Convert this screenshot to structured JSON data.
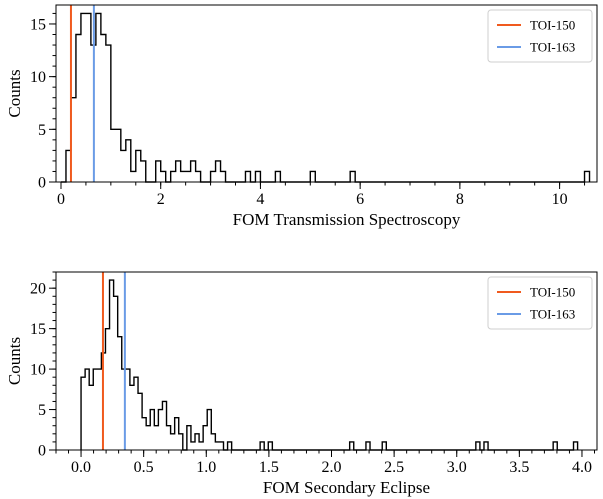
{
  "chart_data": [
    {
      "type": "histogram",
      "xlabel": "FOM Transmission Spectroscopy",
      "ylabel": "Counts",
      "xlim": [
        -0.1,
        10.75
      ],
      "ylim": [
        0,
        16.8
      ],
      "xticks": [
        0,
        2,
        4,
        6,
        8,
        10
      ],
      "yticks": [
        0,
        5,
        10,
        15
      ],
      "bin_start": 0.0,
      "bin_width": 0.1,
      "counts": [
        0,
        3,
        8,
        14,
        16,
        16,
        13,
        16,
        14,
        13,
        5,
        5,
        3,
        4,
        1,
        3,
        2,
        0,
        0,
        2,
        1,
        0,
        1,
        2,
        1,
        1,
        2,
        1,
        0,
        0,
        1,
        2,
        1,
        0,
        0,
        0,
        0,
        1,
        0,
        1,
        0,
        0,
        0,
        1,
        0,
        0,
        0,
        0,
        0,
        0,
        1,
        0,
        0,
        0,
        0,
        0,
        0,
        0,
        1,
        0,
        0,
        0,
        0,
        0,
        0,
        0,
        0,
        0,
        0,
        0,
        0,
        0,
        0,
        0,
        0,
        0,
        0,
        0,
        0,
        0,
        0,
        0,
        0,
        0,
        0,
        0,
        0,
        0,
        0,
        0,
        0,
        0,
        0,
        0,
        0,
        0,
        0,
        0,
        0,
        0,
        0,
        0,
        0,
        0,
        0,
        1
      ],
      "vlines": [
        {
          "name": "TOI-150",
          "x": 0.2,
          "color": "#f05a1e"
        },
        {
          "name": "TOI-163",
          "x": 0.66,
          "color": "#6a9be6"
        }
      ],
      "legend_placement": "top-right",
      "grid": false
    },
    {
      "type": "histogram",
      "xlabel": "FOM Secondary Eclipse",
      "ylabel": "Counts",
      "xlim": [
        -0.2,
        4.12
      ],
      "ylim": [
        0,
        22
      ],
      "xticks": [
        0.0,
        0.5,
        1.0,
        1.5,
        2.0,
        2.5,
        3.0,
        3.5,
        4.0
      ],
      "xtick_labels": [
        "0.0",
        "0.5",
        "1.0",
        "1.5",
        "2.0",
        "2.5",
        "3.0",
        "3.5",
        "4.0"
      ],
      "yticks": [
        0,
        5,
        10,
        15,
        20
      ],
      "bin_start": 0.0,
      "bin_width": 0.0325,
      "counts": [
        9,
        10,
        8,
        10,
        10,
        12,
        15,
        21,
        19,
        14,
        10,
        10,
        8,
        9,
        7,
        4,
        3,
        5,
        3,
        5,
        6,
        3,
        2,
        4,
        2,
        0,
        3,
        1,
        2,
        1,
        3,
        5,
        2,
        1,
        1,
        0,
        1,
        0,
        0,
        0,
        0,
        0,
        0,
        0,
        1,
        0,
        1,
        0,
        0,
        0,
        0,
        0,
        0,
        0,
        0,
        0,
        0,
        0,
        0,
        0,
        0,
        0,
        0,
        0,
        0,
        0,
        1,
        0,
        0,
        0,
        1,
        0,
        0,
        0,
        1,
        0,
        0,
        0,
        0,
        0,
        0,
        0,
        0,
        0,
        0,
        0,
        0,
        0,
        0,
        0,
        0,
        0,
        0,
        0,
        0,
        0,
        0,
        1,
        0,
        1,
        0,
        0,
        0,
        0,
        0,
        0,
        0,
        0,
        0,
        0,
        0,
        0,
        0,
        0,
        0,
        0,
        1,
        0,
        0,
        0,
        0,
        1
      ],
      "vlines": [
        {
          "name": "TOI-150",
          "x": 0.175,
          "color": "#f05a1e"
        },
        {
          "name": "TOI-163",
          "x": 0.35,
          "color": "#6a9be6"
        }
      ],
      "legend_placement": "top-right",
      "grid": false
    }
  ]
}
